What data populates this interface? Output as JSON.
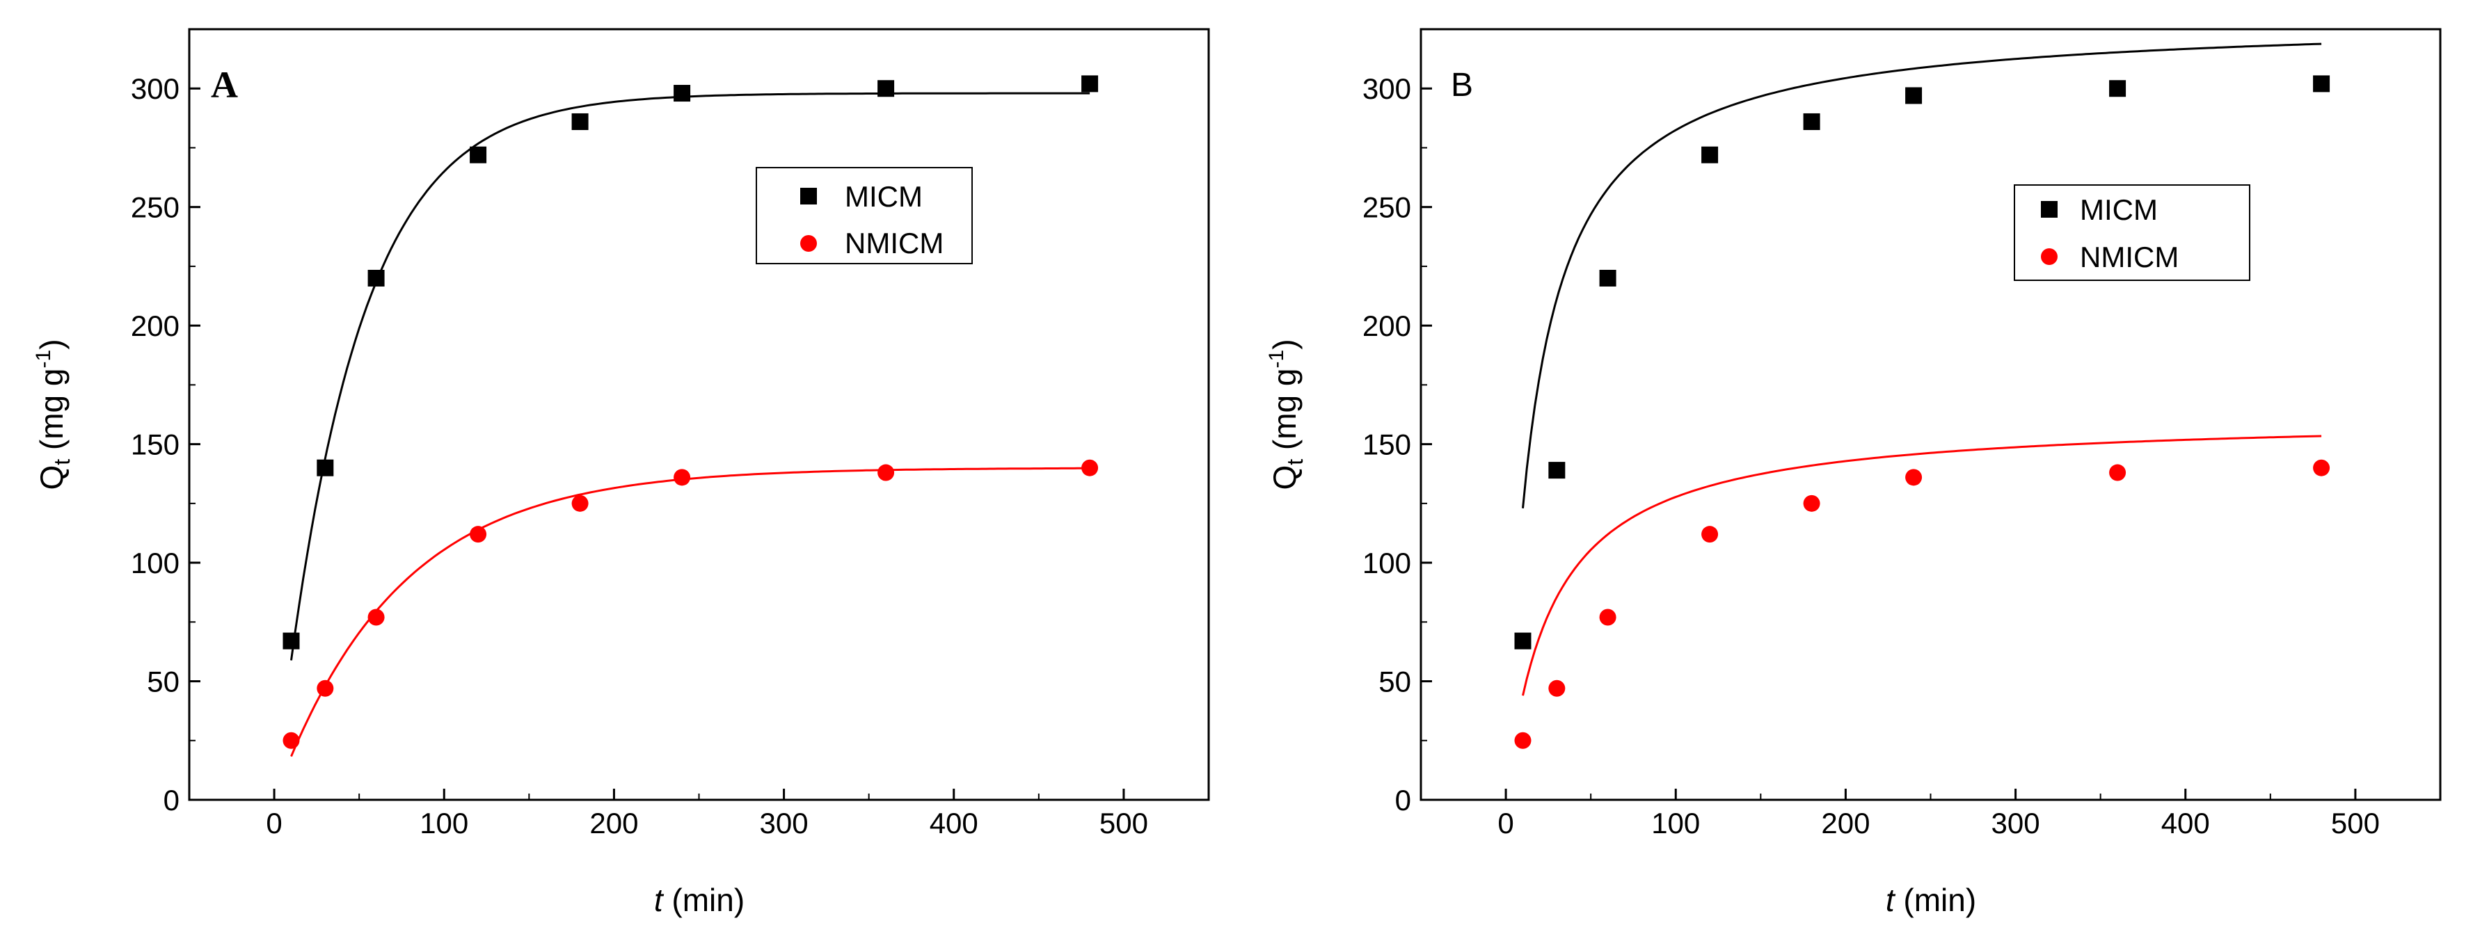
{
  "chart_data": [
    {
      "type": "scatter",
      "panel_label": "A",
      "xlabel_italic": "t",
      "xlabel_rest": " (min)",
      "ylabel_main": "Q",
      "ylabel_sub": "t",
      "ylabel_unit": " (mg g",
      "ylabel_exp": "-1",
      "ylabel_close": ")",
      "xlim": [
        -50,
        550
      ],
      "ylim": [
        0,
        325
      ],
      "xticks": [
        0,
        100,
        200,
        300,
        400,
        500
      ],
      "yticks": [
        0,
        50,
        100,
        150,
        200,
        250,
        300
      ],
      "legend_position": "upper-center-right",
      "series": [
        {
          "name": "MICM",
          "marker": "square",
          "color": "#000000",
          "x": [
            10,
            30,
            60,
            120,
            180,
            240,
            360,
            480
          ],
          "y": [
            67,
            140,
            220,
            272,
            286,
            298,
            300,
            302
          ],
          "fit": {
            "model": "pfo",
            "qe": 298,
            "k": 0.022,
            "x_range": [
              10,
              480
            ]
          }
        },
        {
          "name": "NMICM",
          "marker": "circle",
          "color": "#ff0000",
          "x": [
            10,
            30,
            60,
            120,
            180,
            240,
            360,
            480
          ],
          "y": [
            25,
            47,
            77,
            112,
            125,
            136,
            138,
            140
          ],
          "fit": {
            "model": "pfo",
            "qe": 140,
            "k": 0.014,
            "x_range": [
              10,
              480
            ]
          }
        }
      ]
    },
    {
      "type": "scatter",
      "panel_label": "B",
      "xlabel_italic": "t",
      "xlabel_rest": " (min)",
      "ylabel_main": "Q",
      "ylabel_sub": "t",
      "ylabel_unit": " (mg g",
      "ylabel_exp": "-1",
      "ylabel_close": ")",
      "xlim": [
        -50,
        550
      ],
      "ylim": [
        0,
        325
      ],
      "xticks": [
        0,
        100,
        200,
        300,
        400,
        500
      ],
      "yticks": [
        0,
        50,
        100,
        150,
        200,
        250,
        300
      ],
      "legend_position": "upper-center-right",
      "series": [
        {
          "name": "MICM",
          "marker": "square",
          "color": "#000000",
          "x": [
            10,
            30,
            60,
            120,
            180,
            240,
            360,
            480
          ],
          "y": [
            67,
            139,
            220,
            272,
            286,
            297,
            300,
            302
          ],
          "fit": {
            "model": "pso",
            "qe": 330,
            "k": 0.00018,
            "x_range": [
              10,
              480
            ]
          }
        },
        {
          "name": "NMICM",
          "marker": "circle",
          "color": "#ff0000",
          "x": [
            10,
            30,
            60,
            120,
            180,
            240,
            360,
            480
          ],
          "y": [
            25,
            47,
            77,
            112,
            125,
            136,
            138,
            140
          ],
          "fit": {
            "model": "pso",
            "qe": 162,
            "k": 0.00023,
            "x_range": [
              10,
              480
            ]
          }
        }
      ]
    }
  ]
}
